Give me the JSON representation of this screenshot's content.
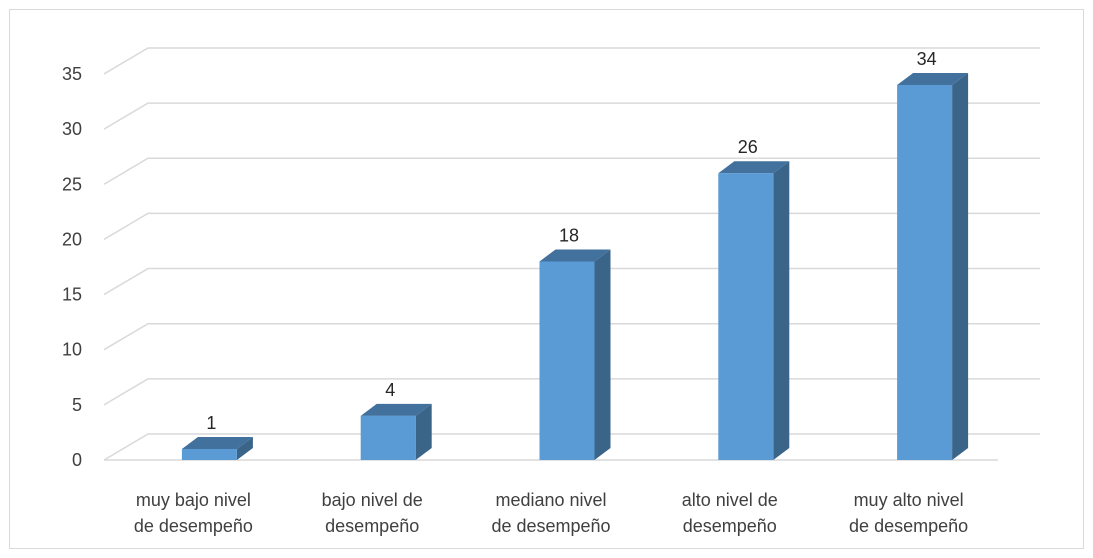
{
  "chart_data": {
    "type": "bar",
    "style": "3d-column",
    "categories": [
      [
        "muy bajo nivel",
        "de desempeño"
      ],
      [
        "bajo nivel de",
        "desempeño"
      ],
      [
        "mediano nivel",
        "de desempeño"
      ],
      [
        "alto nivel de",
        "desempeño"
      ],
      [
        "muy alto nivel",
        "de desempeño"
      ]
    ],
    "values": [
      1,
      4,
      18,
      26,
      34
    ],
    "data_labels": [
      "1",
      "4",
      "18",
      "26",
      "34"
    ],
    "title": "",
    "xlabel": "",
    "ylabel": "",
    "ylim": [
      0,
      35
    ],
    "yticks": [
      0,
      5,
      10,
      15,
      20,
      25,
      30,
      35
    ],
    "grid": true,
    "legend": "none"
  },
  "colors": {
    "bar_front": "#5b9bd5",
    "bar_top": "#41719c",
    "bar_side": "#3b6489",
    "gridline": "#d9d9d9",
    "text": "#404040"
  }
}
